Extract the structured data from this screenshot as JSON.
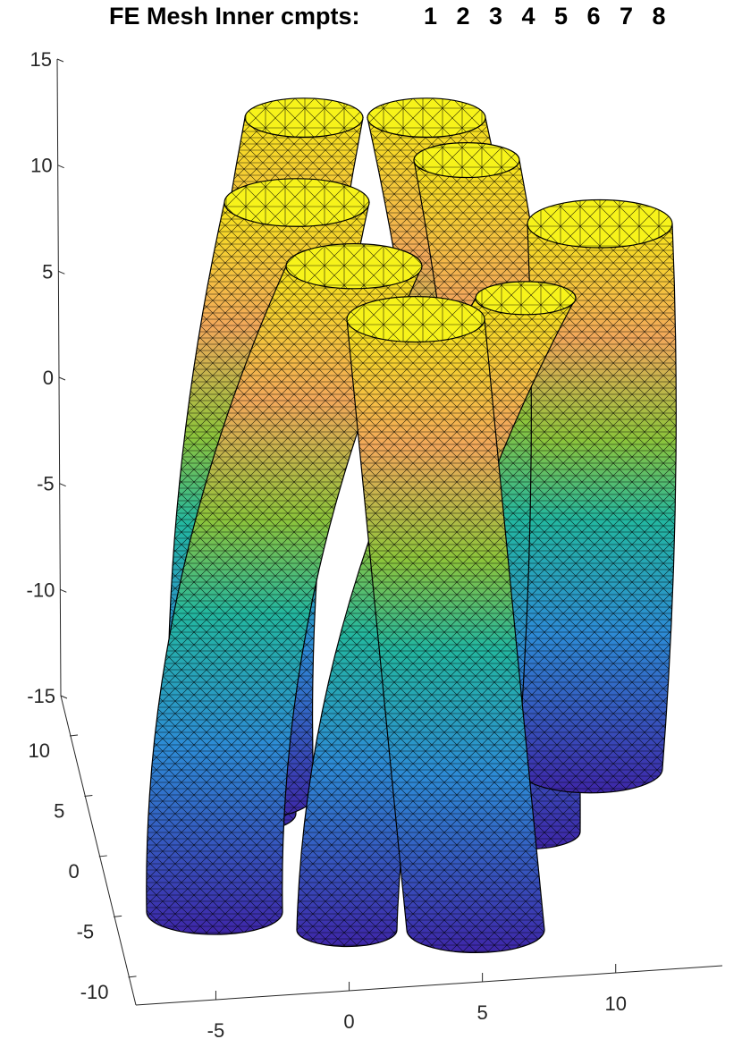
{
  "chart_data": {
    "type": "surface3d",
    "title": "FE Mesh Inner cmpts:",
    "compartments": [
      "1",
      "2",
      "3",
      "4",
      "5",
      "6",
      "7",
      "8"
    ],
    "z_ticks": [
      "15",
      "10",
      "5",
      "0",
      "-5",
      "-10",
      "-15"
    ],
    "y_ticks": [
      "10",
      "5",
      "0",
      "-5",
      "-10"
    ],
    "x_ticks": [
      "-5",
      "0",
      "5",
      "10"
    ],
    "zlim": [
      -15,
      15
    ],
    "ylim": [
      -10,
      10
    ],
    "xlim": [
      -8,
      14
    ],
    "grid": false,
    "colormap": "parula",
    "colors": {
      "low": "#3e26a8",
      "mid_low": "#2d8bd6",
      "mid": "#23b7a0",
      "mid_high": "#8cc43b",
      "orange": "#f2a85a",
      "high": "#f7e51a",
      "cap": "#f7f31a",
      "edge": "#000000"
    },
    "cylinders": [
      {
        "id": "1",
        "top_z": 13.5,
        "bottom_z": -15,
        "curve": "bend-left",
        "band": "back"
      },
      {
        "id": "2",
        "top_z": 13.5,
        "bottom_z": -12,
        "curve": "bend-right",
        "band": "back"
      },
      {
        "id": "3",
        "top_z": 11.5,
        "bottom_z": -15,
        "curve": "bend-right",
        "band": "back"
      },
      {
        "id": "4",
        "top_z": 9.5,
        "bottom_z": -15,
        "curve": "bend-left",
        "band": "middle"
      },
      {
        "id": "5",
        "top_z": 8.5,
        "bottom_z": -15,
        "curve": "bend-right",
        "band": "middle"
      },
      {
        "id": "6",
        "top_z": 6.5,
        "bottom_z": -15,
        "curve": "bend-left",
        "band": "front"
      },
      {
        "id": "7",
        "top_z": 5,
        "bottom_z": -15,
        "curve": "bend-right",
        "band": "front"
      },
      {
        "id": "8",
        "top_z": 4,
        "bottom_z": -15,
        "curve": "bend-left",
        "band": "front"
      }
    ]
  }
}
